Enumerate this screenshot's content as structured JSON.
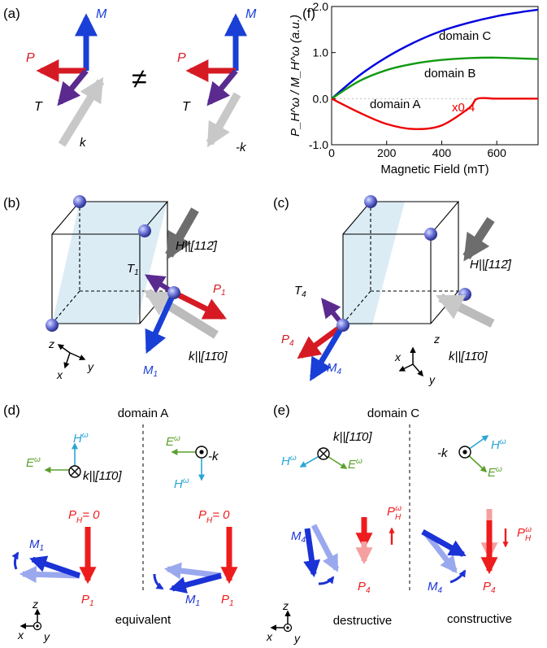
{
  "panels": {
    "a": {
      "label": "(a)",
      "M": "M",
      "P": "P",
      "T": "T",
      "k_left": "k",
      "k_right": "-k",
      "neq": "≠"
    },
    "b": {
      "label": "(b)",
      "H": "H||[112̄]",
      "T": "T",
      "T_sub": "1",
      "P": "P",
      "P_sub": "1",
      "M": "M",
      "M_sub": "1",
      "k": "k||[11̄0]",
      "axes": {
        "x": "x",
        "y": "y",
        "z": "z"
      }
    },
    "c": {
      "label": "(c)",
      "H": "H||[112̄]",
      "T": "T",
      "T_sub": "4",
      "P": "P",
      "P_sub": "4",
      "M": "M",
      "M_sub": "4",
      "k": "k||[11̄0]",
      "axes": {
        "x": "x",
        "y": "y",
        "z": "z"
      }
    },
    "d": {
      "label": "(d)",
      "title": "domain A",
      "E": "E",
      "H": "H",
      "omega": "ω",
      "k_left": "k||[11̄0]",
      "k_right": "-k",
      "ph_left": "P",
      "ph_sub": "H",
      "ph_eq": "= 0",
      "M": "M",
      "M_sub": "1",
      "P": "P",
      "P_sub": "1",
      "bottom": "equivalent",
      "axes": {
        "x": "x",
        "y": "y",
        "z": "z"
      }
    },
    "e": {
      "label": "(e)",
      "title": "domain C",
      "E": "E",
      "H": "H",
      "omega": "ω",
      "k_left": "k||[11̄0]",
      "k_right": "-k",
      "M": "M",
      "M_sub": "4",
      "P": "P",
      "P_sub": "4",
      "ph": "P",
      "ph_sub": "H",
      "destructive": "destructive",
      "constructive": "constructive",
      "axes": {
        "x": "x",
        "y": "y",
        "z": "z"
      }
    }
  },
  "chart_data": {
    "label": "(f)",
    "type": "line",
    "xlabel": "Magnetic Field (mT)",
    "ylabel": "P_H^ω / M_H^ω (a.u.)",
    "xlim": [
      0,
      750
    ],
    "ylim": [
      -1.0,
      2.0
    ],
    "xticks": [
      0,
      200,
      400,
      600
    ],
    "yticks": [
      "-1.0",
      "0.0",
      "1.0",
      "2.0"
    ],
    "grid": false,
    "annotation": "x0.4",
    "series": [
      {
        "name": "domain C",
        "color": "#0000dd",
        "x": [
          0,
          100,
          200,
          300,
          400,
          500,
          600,
          700,
          750
        ],
        "y": [
          0,
          0.5,
          0.9,
          1.22,
          1.47,
          1.65,
          1.79,
          1.89,
          1.93
        ]
      },
      {
        "name": "domain B",
        "color": "#119911",
        "x": [
          0,
          100,
          200,
          300,
          400,
          500,
          600,
          700,
          750
        ],
        "y": [
          0,
          0.38,
          0.62,
          0.76,
          0.84,
          0.88,
          0.89,
          0.87,
          0.86
        ]
      },
      {
        "name": "domain A",
        "color": "#ee0000",
        "x": [
          0,
          100,
          200,
          300,
          400,
          500,
          530,
          600,
          700,
          750
        ],
        "y": [
          0,
          -0.3,
          -0.55,
          -0.66,
          -0.58,
          -0.2,
          0,
          0,
          0,
          0
        ]
      }
    ]
  }
}
